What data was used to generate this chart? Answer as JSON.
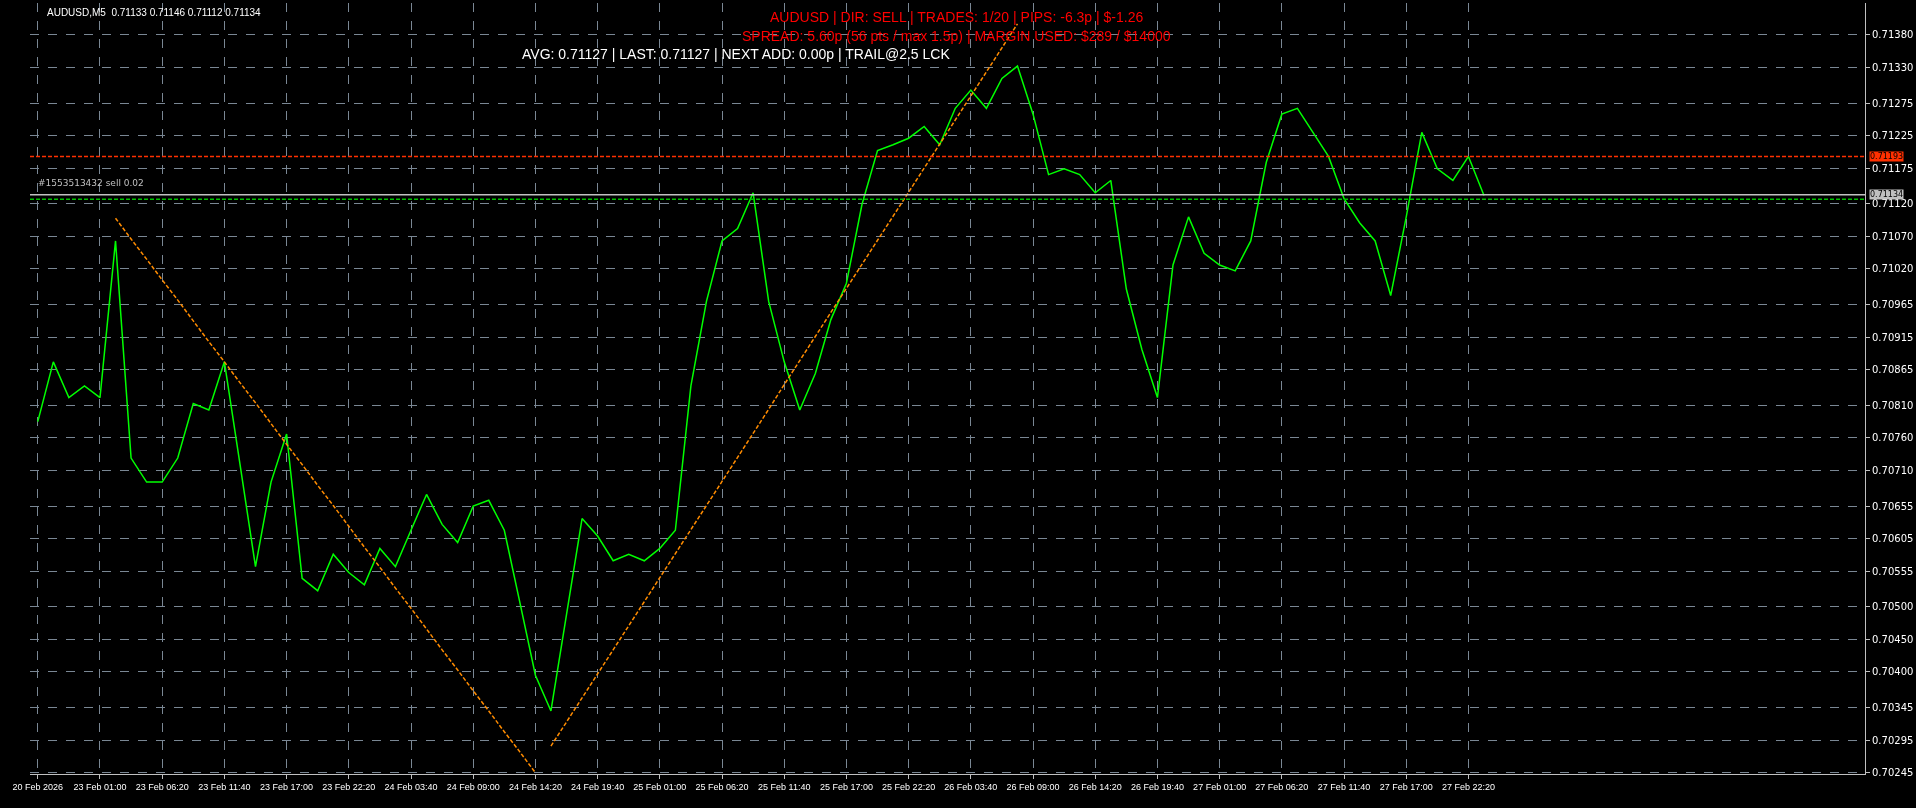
{
  "chart_data": {
    "type": "line",
    "annotations": [
      "AUDUSD,M5  0.71133 0.71146 0.71112 0.71134",
      "AUDUSD | DIR: SELL | TRADES: 1/20 | PIPS: -6.3p | $-1.26",
      "SPREAD: 5.60p (56 pts / max 1.5p) | MARGIN USED: $289 / $14000",
      "AVG: 0.71127 | LAST: 0.71127 | NEXT ADD: 0.00p | TRAIL@2.5 LCK"
    ],
    "categories": [
      "20 Feb 2026",
      null,
      null,
      null,
      "23 Feb 01:00",
      null,
      null,
      null,
      "23 Feb 06:20",
      null,
      null,
      null,
      "23 Feb 11:40",
      null,
      null,
      null,
      "23 Feb 17:00",
      null,
      null,
      null,
      "23 Feb 22:20",
      null,
      null,
      null,
      "24 Feb 03:40",
      null,
      null,
      null,
      "24 Feb 09:00",
      null,
      null,
      null,
      "24 Feb 14:20",
      null,
      null,
      null,
      "24 Feb 19:40",
      null,
      null,
      null,
      "25 Feb 01:00",
      null,
      null,
      null,
      "25 Feb 06:20",
      null,
      null,
      null,
      "25 Feb 11:40",
      null,
      null,
      null,
      "25 Feb 17:00",
      null,
      null,
      null,
      "25 Feb 22:20",
      null,
      null,
      null,
      "26 Feb 03:40",
      null,
      null,
      null,
      "26 Feb 09:00",
      null,
      null,
      null,
      "26 Feb 14:20",
      null,
      null,
      null,
      "26 Feb 19:40",
      null,
      null,
      null,
      "27 Feb 01:00",
      null,
      null,
      null,
      "27 Feb 06:20",
      null,
      null,
      null,
      "27 Feb 11:40",
      null,
      null,
      null,
      "27 Feb 17:00",
      null,
      null,
      null,
      "27 Feb 22:20",
      null,
      null,
      null,
      null,
      null,
      null,
      null,
      null,
      null,
      null,
      null,
      null,
      null,
      null,
      null,
      null,
      null,
      null,
      null,
      null,
      null,
      null,
      null,
      null,
      null
    ],
    "series": [
      {
        "color": "#00ff00",
        "line_style": "solid",
        "values": [
          0.70785,
          0.70877,
          0.70822,
          0.7084,
          0.70822,
          0.71063,
          0.70729,
          0.70692,
          0.70692,
          0.70729,
          0.70813,
          0.70803,
          0.70877,
          0.7072,
          0.70562,
          0.70692,
          0.70766,
          0.70544,
          0.70525,
          0.70581,
          0.70553,
          0.70534,
          0.7059,
          0.70562,
          0.70618,
          0.70673,
          0.70627,
          0.70599,
          0.70655,
          0.70664,
          0.70618,
          0.70507,
          0.70395,
          0.7034,
          0.70488,
          0.70636,
          0.70609,
          0.70571,
          0.70581,
          0.70571,
          0.7059,
          0.70618,
          0.7084,
          0.7097,
          0.71063,
          0.71082,
          0.71137,
          0.7097,
          0.70877,
          0.70803,
          0.70859,
          0.70942,
          0.70998,
          0.71119,
          0.71202,
          0.71211,
          0.71221,
          0.71239,
          0.71211,
          0.71267,
          0.71295,
          0.71267,
          0.71313,
          0.71332,
          0.71258,
          0.71165,
          0.71174,
          0.71165,
          0.71137,
          0.71156,
          0.70989,
          0.70896,
          0.70822,
          0.71026,
          0.711,
          0.71044,
          0.71026,
          0.71017,
          0.71063,
          0.71184,
          0.71258,
          0.71267,
          0.7123,
          0.71193,
          0.71128,
          0.71091,
          0.71063,
          0.70979,
          0.711,
          0.7123,
          0.71174,
          0.71156,
          0.71193,
          0.71133,
          null,
          null,
          null,
          null,
          null,
          null,
          null,
          null,
          null,
          null,
          null,
          null,
          null,
          null,
          null,
          null,
          null,
          null,
          null,
          null,
          null,
          null,
          null,
          null
        ]
      },
      {
        "color": "#ff8c00",
        "line_style": "dashed",
        "values": [
          null,
          null,
          null,
          null,
          null,
          0.71098,
          0.71066,
          0.71035,
          0.71003,
          0.70972,
          0.7094,
          0.70908,
          0.70877,
          0.70845,
          0.70814,
          0.70782,
          0.7075,
          0.70719,
          0.70687,
          0.70656,
          0.70624,
          0.70592,
          0.70561,
          0.70529,
          0.70498,
          0.70466,
          0.70434,
          0.70403,
          0.70371,
          0.7034,
          0.70308,
          0.70277,
          0.70245,
          null,
          null,
          null,
          null,
          null,
          null,
          null,
          null,
          null,
          null,
          null,
          null,
          null,
          null,
          null,
          null,
          null,
          null,
          null,
          null,
          null,
          null,
          null,
          null,
          null,
          null,
          null,
          null,
          null,
          null,
          null,
          null,
          null,
          null,
          null,
          null,
          null,
          null,
          null,
          null,
          null,
          null,
          null,
          null,
          null,
          null,
          null,
          null,
          null,
          null,
          null,
          null,
          null,
          null,
          null,
          null,
          null,
          null,
          null,
          null,
          null,
          null,
          null,
          null,
          null,
          null,
          null,
          null,
          null,
          null,
          null,
          null,
          null,
          null,
          null,
          null,
          null,
          null,
          null,
          null,
          null,
          null,
          null,
          null,
          null
        ]
      },
      {
        "color": "#ff8c00",
        "line_style": "dashed",
        "values": [
          null,
          null,
          null,
          null,
          null,
          null,
          null,
          null,
          null,
          null,
          null,
          null,
          null,
          null,
          null,
          null,
          null,
          null,
          null,
          null,
          null,
          null,
          null,
          null,
          null,
          null,
          null,
          null,
          null,
          null,
          null,
          null,
          null,
          0.70286,
          0.70323,
          0.7036,
          0.70397,
          0.70434,
          0.70471,
          0.70508,
          0.70545,
          0.70582,
          0.70619,
          0.70656,
          0.70693,
          0.7073,
          0.70767,
          0.70804,
          0.70842,
          0.70879,
          0.70916,
          0.70953,
          0.7099,
          0.71027,
          0.71064,
          0.71101,
          0.71138,
          0.71175,
          0.71212,
          0.71249,
          0.71286,
          0.71323,
          0.7136,
          0.71397,
          null,
          null,
          null,
          null,
          null,
          null,
          null,
          null,
          null,
          null,
          null,
          null,
          null,
          null,
          null,
          null,
          null,
          null,
          null,
          null,
          null,
          null,
          null,
          null,
          null,
          null,
          null,
          null,
          null,
          null,
          null,
          null,
          null,
          null,
          null,
          null,
          null,
          null,
          null,
          null,
          null,
          null,
          null,
          null,
          null,
          null,
          null,
          null,
          null,
          null,
          null,
          null,
          null,
          null
        ]
      }
    ],
    "ylim": [
      0.70243,
      0.71429
    ],
    "yticks": [
      {
        "value": 0.7138,
        "label": "0.71380"
      },
      {
        "value": 0.7133,
        "label": "0.71330"
      },
      {
        "value": 0.71275,
        "label": "0.71275"
      },
      {
        "value": 0.71225,
        "label": "0.71225"
      },
      {
        "value": 0.71175,
        "label": "0.71175"
      },
      {
        "value": 0.7112,
        "label": "0.71120"
      },
      {
        "value": 0.7107,
        "label": "0.71070"
      },
      {
        "value": 0.7102,
        "label": "0.71020"
      },
      {
        "value": 0.70965,
        "label": "0.70965"
      },
      {
        "value": 0.70915,
        "label": "0.70915"
      },
      {
        "value": 0.70865,
        "label": "0.70865"
      },
      {
        "value": 0.7081,
        "label": "0.70810"
      },
      {
        "value": 0.7076,
        "label": "0.70760"
      },
      {
        "value": 0.7071,
        "label": "0.70710"
      },
      {
        "value": 0.70655,
        "label": "0.70655"
      },
      {
        "value": 0.70605,
        "label": "0.70605"
      },
      {
        "value": 0.70555,
        "label": "0.70555"
      },
      {
        "value": 0.705,
        "label": "0.70500"
      },
      {
        "value": 0.7045,
        "label": "0.70450"
      },
      {
        "value": 0.704,
        "label": "0.70400"
      },
      {
        "value": 0.70345,
        "label": "0.70345"
      },
      {
        "value": 0.70295,
        "label": "0.70295"
      },
      {
        "value": 0.70245,
        "label": "0.70245"
      }
    ],
    "ref_lines": [
      {
        "axis": "y",
        "value": 0.71193,
        "label": "0.71193",
        "color": "#ff3000",
        "line_style": "dashed"
      },
      {
        "axis": "y",
        "value": 0.71134,
        "label": "0.71134",
        "color": "#c0c0c0",
        "line_style": "solid"
      },
      {
        "axis": "y",
        "value": 0.71127,
        "label": "#1553513432 sell 0.02",
        "color": "#00c000",
        "line_style": "dashed"
      }
    ],
    "grid": true,
    "marker": "none"
  }
}
